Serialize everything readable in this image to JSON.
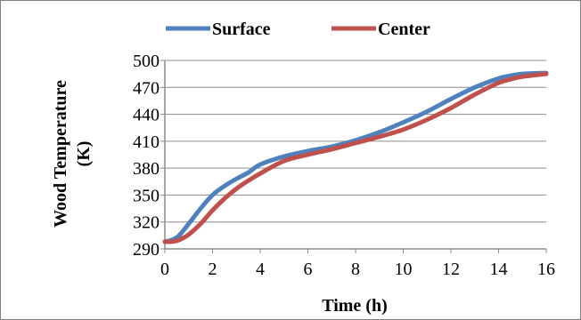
{
  "chart_data": {
    "type": "line",
    "xlabel": "Time (h)",
    "ylabel_line1": "Wood Temperature",
    "ylabel_line2": "(K)",
    "xlim": [
      0,
      16
    ],
    "ylim": [
      290,
      500
    ],
    "xticks": [
      0,
      2,
      4,
      6,
      8,
      10,
      12,
      14,
      16
    ],
    "yticks": [
      290,
      320,
      350,
      380,
      410,
      440,
      470,
      500
    ],
    "grid": true,
    "legend_position": "top",
    "series": [
      {
        "name": "Surface",
        "color": "#4f81bd",
        "x": [
          0,
          0.3,
          0.6,
          1,
          1.5,
          2,
          2.5,
          3,
          3.5,
          4,
          5,
          6,
          7,
          8,
          9,
          10,
          11,
          12,
          13,
          14,
          14.5,
          15,
          16
        ],
        "y": [
          298,
          300,
          305,
          318,
          335,
          350,
          360,
          368,
          375,
          384,
          393,
          399,
          404,
          411,
          420,
          431,
          443,
          457,
          470,
          480,
          483,
          485,
          486
        ]
      },
      {
        "name": "Center",
        "color": "#c0504d",
        "x": [
          0,
          0.3,
          0.6,
          1,
          1.5,
          2,
          2.5,
          3,
          3.5,
          4,
          5,
          6,
          7,
          8,
          9,
          10,
          11,
          12,
          13,
          14,
          14.5,
          15,
          16
        ],
        "y": [
          298,
          298,
          300,
          306,
          318,
          333,
          346,
          357,
          366,
          374,
          388,
          395,
          401,
          408,
          415,
          423,
          434,
          447,
          462,
          475,
          479,
          482,
          485
        ]
      }
    ]
  }
}
